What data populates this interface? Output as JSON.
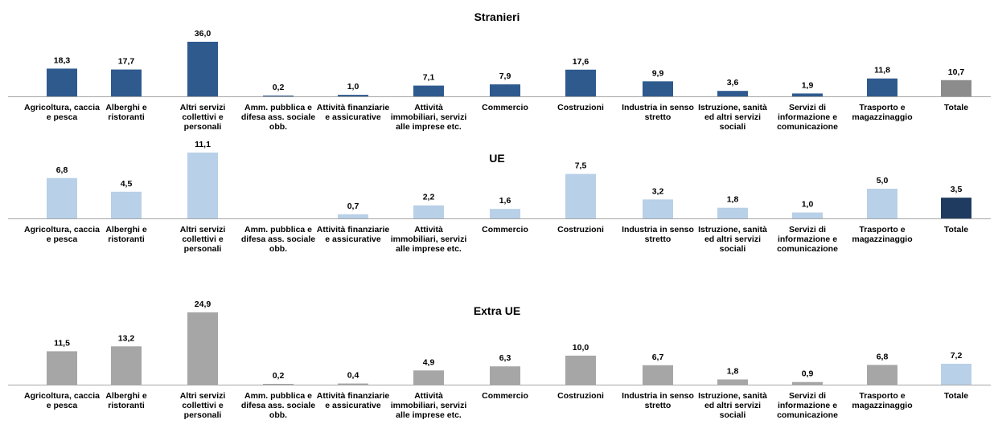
{
  "chart_data": [
    {
      "type": "bar",
      "title": "Stranieri",
      "categories": [
        "Agricoltura, caccia e pesca",
        "Alberghi e ristoranti",
        "Altri servizi collettivi e personali",
        "Amm. pubblica e difesa ass. sociale obb.",
        "Attività finanziarie e assicurative",
        "Attività immobiliari, servizi alle imprese etc.",
        "Commercio",
        "Costruzioni",
        "Industria in senso stretto",
        "Istruzione, sanità ed altri servizi sociali",
        "Servizi di informazione e comunicazione",
        "Trasporto e magazzinaggio",
        "Totale"
      ],
      "values": [
        18.3,
        17.7,
        36.0,
        0.2,
        1.0,
        7.1,
        7.9,
        17.6,
        9.9,
        3.6,
        1.9,
        11.8,
        10.7
      ],
      "value_labels": [
        "18,3",
        "17,7",
        "36,0",
        "0,2",
        "1,0",
        "7,1",
        "7,9",
        "17,6",
        "9,9",
        "3,6",
        "1,9",
        "11,8",
        "10,7"
      ],
      "colors": [
        "#2e5a8e",
        "#2e5a8e",
        "#2e5a8e",
        "#2e5a8e",
        "#2e5a8e",
        "#2e5a8e",
        "#2e5a8e",
        "#2e5a8e",
        "#2e5a8e",
        "#2e5a8e",
        "#2e5a8e",
        "#2e5a8e",
        "#8c8c8c"
      ],
      "ylim": [
        0,
        36
      ]
    },
    {
      "type": "bar",
      "title": "UE",
      "categories": [
        "Agricoltura, caccia e pesca",
        "Alberghi e ristoranti",
        "Altri servizi collettivi e personali",
        "Amm. pubblica e difesa ass. sociale obb.",
        "Attività finanziarie e assicurative",
        "Attività immobiliari, servizi alle imprese etc.",
        "Commercio",
        "Costruzioni",
        "Industria in senso stretto",
        "Istruzione, sanità ed altri servizi sociali",
        "Servizi di informazione e comunicazione",
        "Trasporto e magazzinaggio",
        "Totale"
      ],
      "values": [
        6.8,
        4.5,
        11.1,
        0,
        0.7,
        2.2,
        1.6,
        7.5,
        3.2,
        1.8,
        1.0,
        5.0,
        3.5
      ],
      "value_labels": [
        "6,8",
        "4,5",
        "11,1",
        "",
        "0,7",
        "2,2",
        "1,6",
        "7,5",
        "3,2",
        "1,8",
        "1,0",
        "5,0",
        "3,5"
      ],
      "colors": [
        "#b8d0e8",
        "#b8d0e8",
        "#b8d0e8",
        "#b8d0e8",
        "#b8d0e8",
        "#b8d0e8",
        "#b8d0e8",
        "#b8d0e8",
        "#b8d0e8",
        "#b8d0e8",
        "#b8d0e8",
        "#b8d0e8",
        "#1f3b60"
      ],
      "ylim": [
        0,
        11.1
      ]
    },
    {
      "type": "bar",
      "title": "Extra UE",
      "categories": [
        "Agricoltura, caccia e pesca",
        "Alberghi e ristoranti",
        "Altri servizi collettivi e personali",
        "Amm. pubblica e difesa ass. sociale obb.",
        "Attività finanziarie e assicurative",
        "Attività immobiliari, servizi alle imprese etc.",
        "Commercio",
        "Costruzioni",
        "Industria in senso stretto",
        "Istruzione, sanità ed altri servizi sociali",
        "Servizi di informazione e comunicazione",
        "Trasporto e magazzinaggio",
        "Totale"
      ],
      "values": [
        11.5,
        13.2,
        24.9,
        0.2,
        0.4,
        4.9,
        6.3,
        10.0,
        6.7,
        1.8,
        0.9,
        6.8,
        7.2
      ],
      "value_labels": [
        "11,5",
        "13,2",
        "24,9",
        "0,2",
        "0,4",
        "4,9",
        "6,3",
        "10,0",
        "6,7",
        "1,8",
        "0,9",
        "6,8",
        "7,2"
      ],
      "colors": [
        "#a6a6a6",
        "#a6a6a6",
        "#a6a6a6",
        "#a6a6a6",
        "#a6a6a6",
        "#a6a6a6",
        "#a6a6a6",
        "#a6a6a6",
        "#a6a6a6",
        "#a6a6a6",
        "#a6a6a6",
        "#a6a6a6",
        "#b8d0e8"
      ],
      "ylim": [
        0,
        24.9
      ]
    }
  ]
}
